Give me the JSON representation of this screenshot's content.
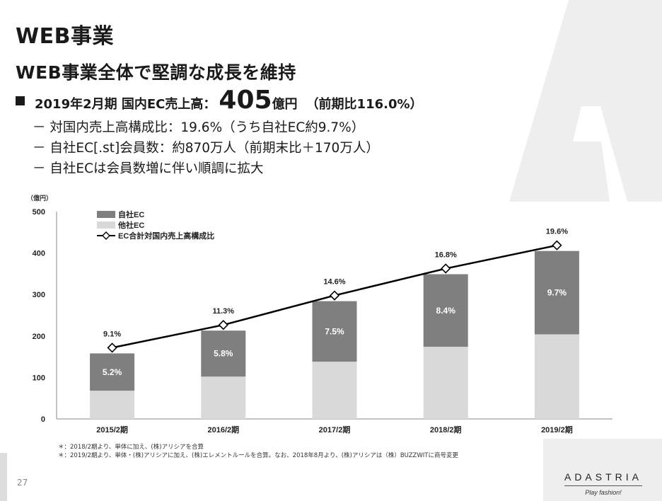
{
  "page": {
    "title": "WEB事業",
    "subtitle": "WEB事業全体で堅調な成長を維持",
    "page_number": "27"
  },
  "headline": {
    "prefix": "2019年2月期 国内EC売上高：",
    "value": "405",
    "unit": "億円",
    "yoy": "（前期比116.0%）"
  },
  "points": [
    "－ 対国内売上高構成比：19.6%（うち自社EC約9.7%）",
    "－ 自社EC[.st]会員数：約870万人（前期末比＋170万人）",
    "－ 自社ECは会員数増に伴い順調に拡大"
  ],
  "footnotes": [
    "＊：2018/2期より、単体に加え、(株)アリシアを合算",
    "＊：2019/2期より、単体・(株)アリシアに加え、(株)エレメントルールを合算。なお、2018年8月より、(株)アリシアは（株）BUZZWITに商号変更"
  ],
  "brand": {
    "logo": "ADASTRIA",
    "tagline": "Play fashion!"
  },
  "colors": {
    "own_ec": "#7f7f7f",
    "other_ec": "#d9d9d9",
    "line": "#000000",
    "background_letter": "#eeeeee"
  },
  "chart_data": {
    "type": "bar",
    "stacked": true,
    "y_unit": "（億円）",
    "ylim": [
      0,
      500
    ],
    "yticks": [
      0,
      100,
      200,
      300,
      400,
      500
    ],
    "categories": [
      "2015/2期",
      "2016/2期",
      "2017/2期",
      "2018/2期",
      "2019/2期"
    ],
    "series": [
      {
        "name": "他社EC",
        "color": "#d9d9d9",
        "values": [
          68,
          102,
          138,
          174,
          204
        ]
      },
      {
        "name": "自社EC",
        "color": "#7f7f7f",
        "values": [
          90,
          111,
          146,
          175,
          201
        ],
        "labels": [
          "5.2%",
          "5.8%",
          "7.5%",
          "8.4%",
          "9.7%"
        ]
      }
    ],
    "line": {
      "name": "EC合計対国内売上高構成比",
      "labels": [
        "9.1%",
        "11.3%",
        "14.6%",
        "16.8%",
        "19.6%"
      ]
    },
    "legend_position": "top-left",
    "grid": false
  }
}
